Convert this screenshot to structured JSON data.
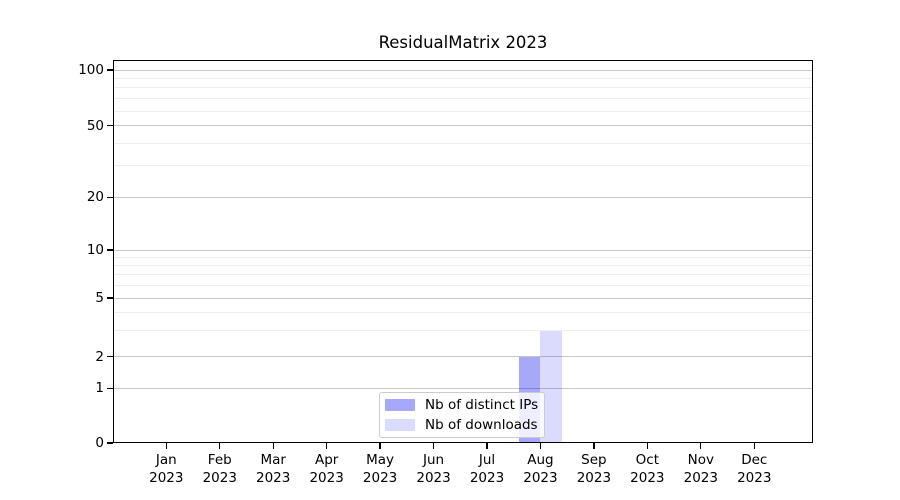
{
  "title": "ResidualMatrix 2023",
  "axes": {
    "y_tick_values": [
      0,
      1,
      2,
      5,
      10,
      20,
      50,
      100
    ],
    "y_tick_labels": [
      "0",
      "1",
      "2",
      "5",
      "10",
      "20",
      "50",
      "100"
    ],
    "y_minor_values": [
      3,
      4,
      6,
      7,
      8,
      9,
      30,
      40,
      60,
      70,
      80,
      90
    ],
    "x_tick_months": [
      "Jan",
      "Feb",
      "Mar",
      "Apr",
      "May",
      "Jun",
      "Jul",
      "Aug",
      "Sep",
      "Oct",
      "Nov",
      "Dec"
    ],
    "x_tick_year": "2023"
  },
  "legend": {
    "items": [
      {
        "label": "Nb of distinct IPs",
        "color": "#a8a8f9"
      },
      {
        "label": "Nb of downloads",
        "color": "#dbdbfb"
      }
    ]
  },
  "colors": {
    "bar_base": "#0000f0",
    "distinct_ips_alpha": 0.34,
    "downloads_alpha": 0.14,
    "distinct_ips_rendered": "#a8a8f9",
    "downloads_rendered": "#dbdbfb",
    "grid_major": "#c7c7c7",
    "grid_minor": "#ededed",
    "spine": "#000000",
    "background": "#ffffff"
  },
  "chart_data": {
    "type": "bar",
    "title": "ResidualMatrix 2023",
    "categories": [
      "Jan 2023",
      "Feb 2023",
      "Mar 2023",
      "Apr 2023",
      "May 2023",
      "Jun 2023",
      "Jul 2023",
      "Aug 2023",
      "Sep 2023",
      "Oct 2023",
      "Nov 2023",
      "Dec 2023"
    ],
    "series": [
      {
        "name": "Nb of distinct IPs",
        "color": "#a8a8f9",
        "values": [
          0,
          0,
          0,
          0,
          0,
          0,
          0,
          2,
          0,
          0,
          0,
          0
        ]
      },
      {
        "name": "Nb of downloads",
        "color": "#dbdbfb",
        "values": [
          0,
          0,
          0,
          0,
          0,
          0,
          0,
          3,
          0,
          0,
          0,
          0
        ]
      }
    ],
    "xlabel": "",
    "ylabel": "",
    "yscale": "asinh-like (symlog, ticks 0,1,2,5,10,20,50,100)",
    "y_ticks": [
      0,
      1,
      2,
      5,
      10,
      20,
      50,
      100
    ],
    "ylim": [
      0,
      113
    ],
    "grid": "horizontal major + minor gridlines",
    "legend_position": "lower center inside plot"
  }
}
